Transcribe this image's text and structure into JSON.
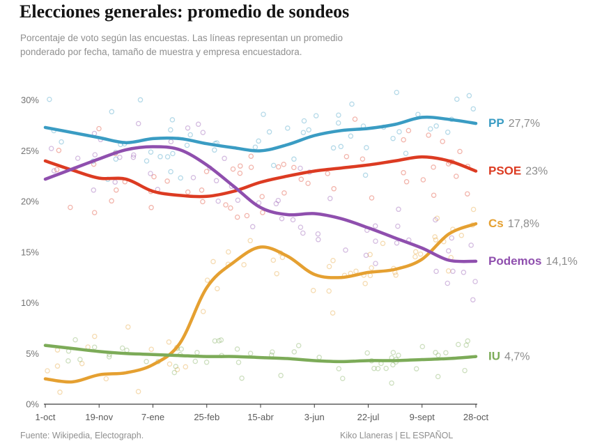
{
  "header": {
    "title": "Elecciones generales: promedio de sondeos",
    "subtitle_line1": "Porcentaje de voto según las encuestas. Las líneas representan un promedio",
    "subtitle_line2": "ponderado por fecha, tamaño de muestra y empresa encuestadora."
  },
  "footer": {
    "source": "Fuente: Wikipedia, Electograph.",
    "credit": "Kiko Llaneras  |  EL ESPAÑOL"
  },
  "chart_data": {
    "type": "line",
    "title": "Elecciones generales: promedio de sondeos",
    "xlabel": "",
    "ylabel": "Porcentaje de voto",
    "ylim": [
      0,
      33
    ],
    "y_ticks": [
      0,
      5,
      10,
      15,
      20,
      25,
      30
    ],
    "y_tick_suffix": "%",
    "x_unit_days_total": 392,
    "x_ticks": [
      {
        "day": 0,
        "label": "1-oct"
      },
      {
        "day": 49,
        "label": "19-nov"
      },
      {
        "day": 98,
        "label": "7-ene"
      },
      {
        "day": 147,
        "label": "25-feb"
      },
      {
        "day": 196,
        "label": "15-abr"
      },
      {
        "day": 245,
        "label": "3-jun"
      },
      {
        "day": 294,
        "label": "22-jul"
      },
      {
        "day": 343,
        "label": "9-sept"
      },
      {
        "day": 392,
        "label": "28-oct"
      }
    ],
    "sample_days": [
      0,
      24.5,
      49,
      73.5,
      98,
      122.5,
      147,
      171.5,
      196,
      220.5,
      245,
      269.5,
      294,
      318.5,
      343,
      367.5,
      392
    ],
    "series": [
      {
        "name": "PP",
        "color": "#3a9cc3",
        "end_label": "27,7%",
        "scatter_sd": 1.9,
        "values": [
          27.3,
          26.8,
          26.3,
          25.8,
          26.2,
          26.2,
          25.7,
          25.3,
          25.0,
          25.6,
          26.5,
          27.0,
          27.2,
          27.6,
          28.3,
          28.1,
          27.7
        ]
      },
      {
        "name": "PSOE",
        "color": "#dc3b22",
        "end_label": "23%",
        "scatter_sd": 1.9,
        "values": [
          24.0,
          23.1,
          22.3,
          22.2,
          21.0,
          20.6,
          20.5,
          21.0,
          21.9,
          22.5,
          23.0,
          23.3,
          23.6,
          24.0,
          24.4,
          24.0,
          23.0
        ]
      },
      {
        "name": "Cs",
        "color": "#e5a031",
        "end_label": "17,8%",
        "scatter_sd": 1.6,
        "values": [
          2.5,
          2.2,
          2.9,
          3.1,
          3.9,
          6.0,
          11.5,
          14.0,
          15.5,
          14.6,
          12.8,
          12.5,
          13.0,
          13.3,
          14.3,
          16.8,
          17.8
        ]
      },
      {
        "name": "Podemos",
        "color": "#8f4fae",
        "end_label": "14,1%",
        "scatter_sd": 2.0,
        "values": [
          22.2,
          23.2,
          24.2,
          25.1,
          25.4,
          25.1,
          23.6,
          21.5,
          19.4,
          18.7,
          18.8,
          18.3,
          17.4,
          16.4,
          15.4,
          14.2,
          14.1
        ]
      },
      {
        "name": "IU",
        "color": "#7cab58",
        "end_label": "4,7%",
        "scatter_sd": 1.0,
        "values": [
          5.8,
          5.5,
          5.2,
          5.0,
          4.9,
          4.8,
          4.7,
          4.7,
          4.6,
          4.5,
          4.3,
          4.2,
          4.3,
          4.3,
          4.4,
          4.5,
          4.7
        ]
      }
    ],
    "scatter": {
      "points_per_series": 58,
      "radius": 3.1,
      "opacity": 0.38,
      "seed": 42
    },
    "legend_position": "right",
    "grid": false,
    "value_label_color": "#8c8c8c",
    "axis_text_color": "#737373",
    "axis_line_color": "#3c3c3c"
  }
}
